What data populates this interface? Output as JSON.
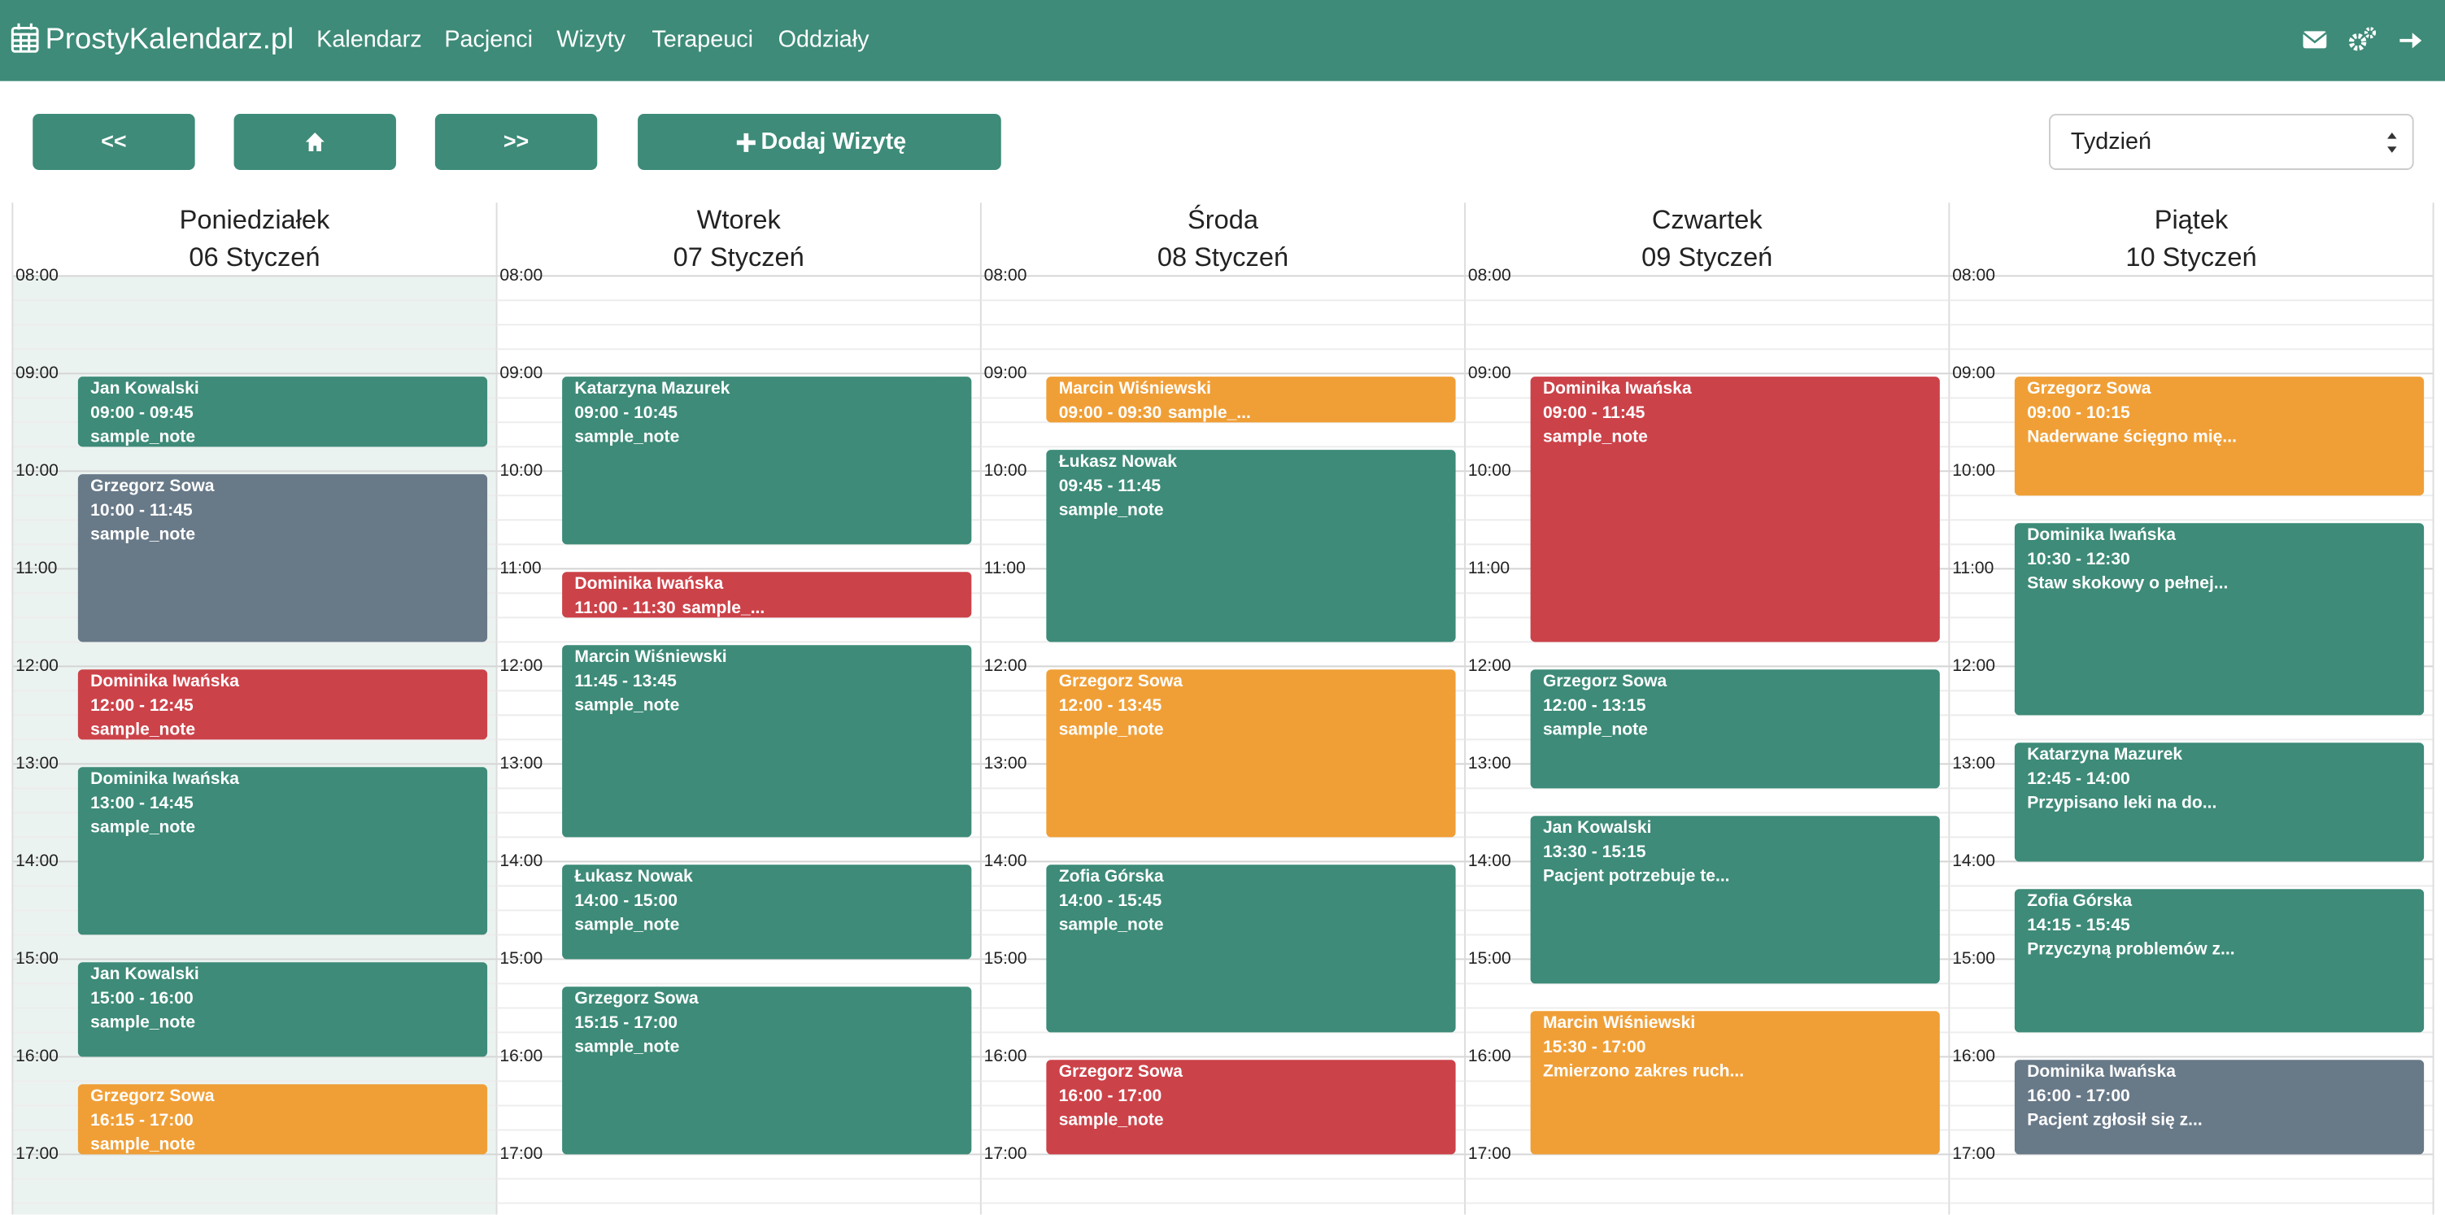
{
  "navbar": {
    "brand": "ProstyKalendarz.pl",
    "links": [
      "Kalendarz",
      "Pacjenci",
      "Wizyty",
      "Terapeuci",
      "Oddziały"
    ]
  },
  "toolbar": {
    "prev": "<<",
    "next": ">>",
    "add": "Dodaj Wizytę",
    "view": "Tydzień"
  },
  "hours": [
    "08:00",
    "09:00",
    "10:00",
    "11:00",
    "12:00",
    "13:00",
    "14:00",
    "15:00",
    "16:00",
    "17:00"
  ],
  "days": [
    {
      "name": "Poniedziałek",
      "date": "06 Styczeń",
      "today": true,
      "events": [
        {
          "patient": "Jan Kowalski",
          "time": "09:00 - 09:45",
          "note": "sample_note",
          "color": "#3d8b78"
        },
        {
          "patient": "Grzegorz Sowa",
          "time": "10:00 - 11:45",
          "note": "sample_note",
          "color": "#687988"
        },
        {
          "patient": "Dominika Iwańska",
          "time": "12:00 - 12:45",
          "note": "sample_note",
          "color": "#cc4249"
        },
        {
          "patient": "Dominika Iwańska",
          "time": "13:00 - 14:45",
          "note": "sample_note",
          "color": "#3d8b78"
        },
        {
          "patient": "Jan Kowalski",
          "time": "15:00 - 16:00",
          "note": "sample_note",
          "color": "#3d8b78"
        },
        {
          "patient": "Grzegorz Sowa",
          "time": "16:15 - 17:00",
          "note": "sample_note",
          "color": "#f09f36"
        }
      ]
    },
    {
      "name": "Wtorek",
      "date": "07 Styczeń",
      "today": false,
      "events": [
        {
          "patient": "Katarzyna Mazurek",
          "time": "09:00 - 10:45",
          "note": "sample_note",
          "color": "#3d8b78"
        },
        {
          "patient": "Dominika Iwańska",
          "time": "11:00 - 11:30",
          "note": "sample_...",
          "color": "#cc4249"
        },
        {
          "patient": "Marcin Wiśniewski",
          "time": "11:45 - 13:45",
          "note": "sample_note",
          "color": "#3d8b78"
        },
        {
          "patient": "Łukasz Nowak",
          "time": "14:00 - 15:00",
          "note": "sample_note",
          "color": "#3d8b78"
        },
        {
          "patient": "Grzegorz Sowa",
          "time": "15:15 - 17:00",
          "note": "sample_note",
          "color": "#3d8b78"
        }
      ]
    },
    {
      "name": "Środa",
      "date": "08 Styczeń",
      "today": false,
      "events": [
        {
          "patient": "Marcin Wiśniewski",
          "time": "09:00 - 09:30",
          "note": "sample_...",
          "color": "#f09f36"
        },
        {
          "patient": "Łukasz Nowak",
          "time": "09:45 - 11:45",
          "note": "sample_note",
          "color": "#3d8b78"
        },
        {
          "patient": "Grzegorz Sowa",
          "time": "12:00 - 13:45",
          "note": "sample_note",
          "color": "#f09f36"
        },
        {
          "patient": "Zofia Górska",
          "time": "14:00 - 15:45",
          "note": "sample_note",
          "color": "#3d8b78"
        },
        {
          "patient": "Grzegorz Sowa",
          "time": "16:00 - 17:00",
          "note": "sample_note",
          "color": "#cc4249"
        }
      ]
    },
    {
      "name": "Czwartek",
      "date": "09 Styczeń",
      "today": false,
      "events": [
        {
          "patient": "Dominika Iwańska",
          "time": "09:00 - 11:45",
          "note": "sample_note",
          "color": "#cc4249"
        },
        {
          "patient": "Grzegorz Sowa",
          "time": "12:00 - 13:15",
          "note": "sample_note",
          "color": "#3d8b78"
        },
        {
          "patient": "Jan Kowalski",
          "time": "13:30 - 15:15",
          "note": "Pacjent potrzebuje te...",
          "color": "#3d8b78"
        },
        {
          "patient": "Marcin Wiśniewski",
          "time": "15:30 - 17:00",
          "note": "Zmierzono zakres ruch...",
          "color": "#f09f36"
        }
      ]
    },
    {
      "name": "Piątek",
      "date": "10 Styczeń",
      "today": false,
      "events": [
        {
          "patient": "Grzegorz Sowa",
          "time": "09:00 - 10:15",
          "note": "Naderwane ścięgno mię...",
          "color": "#f09f36"
        },
        {
          "patient": "Dominika Iwańska",
          "time": "10:30 - 12:30",
          "note": "Staw skokowy o pełnej...",
          "color": "#3d8b78"
        },
        {
          "patient": "Katarzyna Mazurek",
          "time": "12:45 - 14:00",
          "note": "Przypisano leki na do...",
          "color": "#3d8b78"
        },
        {
          "patient": "Zofia Górska",
          "time": "14:15 - 15:45",
          "note": "Przyczyną problemów z...",
          "color": "#3d8b78"
        },
        {
          "patient": "Dominika Iwańska",
          "time": "16:00 - 17:00",
          "note": "Pacjent zgłosił się z...",
          "color": "#687988"
        }
      ]
    }
  ]
}
